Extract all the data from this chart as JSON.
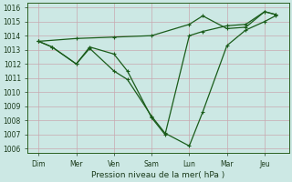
{
  "title": "Pression niveau de la mer( hPa )",
  "ylim": [
    1006,
    1016
  ],
  "yticks": [
    1006,
    1007,
    1008,
    1009,
    1010,
    1011,
    1012,
    1013,
    1014,
    1015,
    1016
  ],
  "xtick_labels": [
    "Dim",
    "Mer",
    "Ven",
    "Sam",
    "Lun",
    "Mar",
    "Jeu"
  ],
  "xtick_positions": [
    0,
    14,
    28,
    42,
    56,
    70,
    84
  ],
  "background_color": "#cce8e4",
  "grid_color": "#c8a8b0",
  "line_color": "#1a5c1a",
  "line1_x": [
    0,
    5,
    14,
    19,
    28,
    33,
    42,
    47,
    56,
    61,
    70,
    77,
    84,
    88
  ],
  "line1_y": [
    1013.6,
    1013.2,
    1012.0,
    1013.1,
    1011.5,
    1010.9,
    1008.3,
    1007.1,
    1006.2,
    1008.6,
    1013.3,
    1014.4,
    1015.0,
    1015.4
  ],
  "line2_x": [
    0,
    14,
    28,
    42,
    56,
    61,
    70,
    77,
    84,
    88
  ],
  "line2_y": [
    1013.6,
    1013.8,
    1013.9,
    1014.0,
    1014.8,
    1015.4,
    1014.5,
    1014.6,
    1015.7,
    1015.5
  ],
  "line3_x": [
    0,
    5,
    14,
    19,
    28,
    33,
    42,
    47,
    56,
    61,
    70,
    77,
    84,
    88
  ],
  "line3_y": [
    1013.6,
    1013.2,
    1012.0,
    1013.2,
    1012.7,
    1011.5,
    1008.2,
    1007.0,
    1014.0,
    1014.3,
    1014.7,
    1014.8,
    1015.7,
    1015.5
  ],
  "figsize": [
    3.2,
    2.0
  ],
  "dpi": 100
}
